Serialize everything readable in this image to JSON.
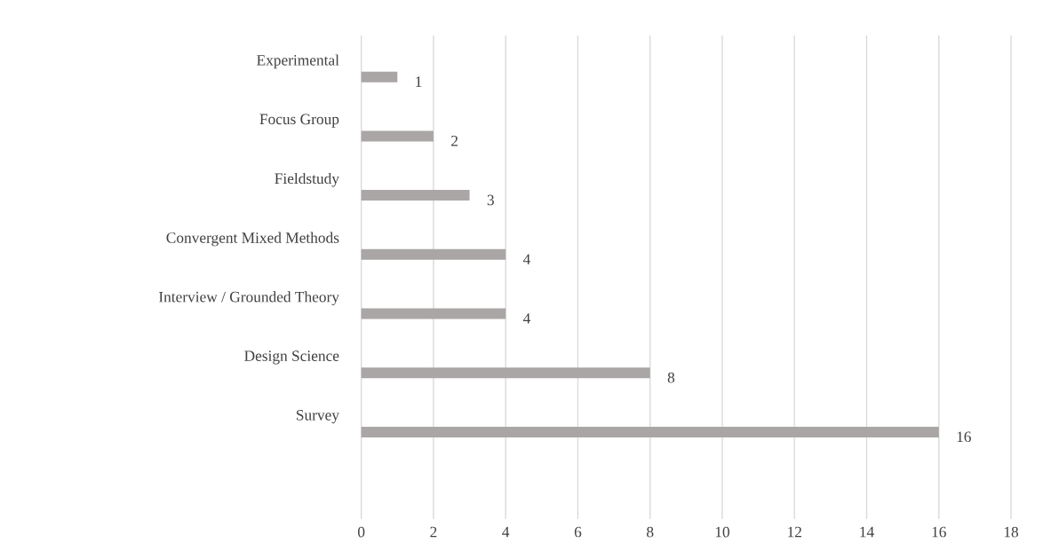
{
  "chart_data": {
    "type": "bar",
    "orientation": "horizontal",
    "categories": [
      "Experimental",
      "Focus Group",
      "Fieldstudy",
      "Convergent Mixed Methods",
      "Interview / Grounded Theory",
      "Design Science",
      "Survey"
    ],
    "values": [
      1,
      2,
      3,
      4,
      4,
      8,
      16
    ],
    "color": "#aaa6a6",
    "xlim": [
      0,
      18
    ],
    "xticks": [
      0,
      2,
      4,
      6,
      8,
      10,
      12,
      14,
      16,
      18
    ],
    "grid": "x",
    "data_labels": true
  }
}
